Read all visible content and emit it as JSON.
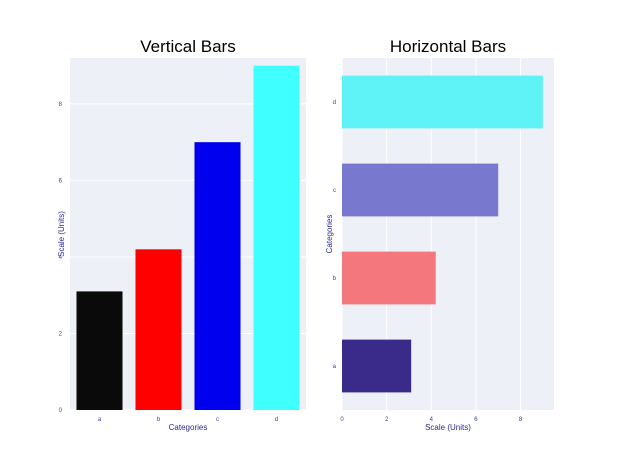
{
  "chart_data": [
    {
      "type": "bar",
      "orientation": "vertical",
      "title": "Vertical Bars",
      "xlabel": "Categories",
      "ylabel": "Scale (Units)",
      "categories": [
        "a",
        "b",
        "c",
        "d"
      ],
      "values": [
        3.1,
        4.2,
        7.0,
        9.0
      ],
      "colors": [
        "#0a0a0a",
        "#ff0000",
        "#0000ee",
        "#40ffff"
      ],
      "ylim": [
        0,
        9.2
      ],
      "yticks": [
        0,
        2,
        4,
        6,
        8
      ],
      "grid": true,
      "background": "#eef0f8"
    },
    {
      "type": "bar",
      "orientation": "horizontal",
      "title": "Horizontal Bars",
      "xlabel": "Scale (Units)",
      "ylabel": "Categories",
      "categories": [
        "a",
        "b",
        "c",
        "d"
      ],
      "values": [
        3.1,
        4.2,
        7.0,
        9.0
      ],
      "colors": [
        "#3a2a8a",
        "#f4777d",
        "#7878cf",
        "#5ff3f7"
      ],
      "xlim": [
        0,
        9.5
      ],
      "xticks": [
        0,
        2,
        4,
        6,
        8
      ],
      "grid": true,
      "background": "#eef0f8"
    }
  ]
}
